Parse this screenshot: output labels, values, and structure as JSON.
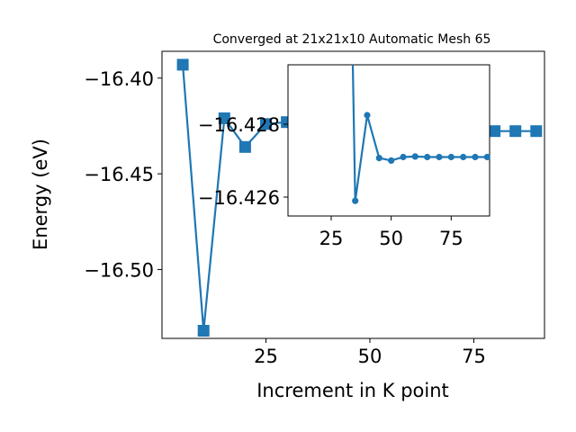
{
  "chart_data": [
    {
      "type": "line",
      "title": "Converged at 21x21x10 Automatic Mesh 65",
      "xlabel": "Increment in K point",
      "ylabel": "Energy (eV)",
      "xlim": [
        0,
        92
      ],
      "ylim": [
        -16.536,
        -16.386
      ],
      "xticks": [
        25,
        50,
        75
      ],
      "xtick_labels": [
        "25",
        "50",
        "75"
      ],
      "yticks": [
        -16.4,
        -16.45,
        -16.5
      ],
      "ytick_labels": [
        "−16.40",
        "−16.45",
        "−16.50"
      ],
      "grid": false,
      "marker": "square",
      "color": "#1f77b4",
      "series": [
        {
          "x": [
            5,
            10,
            15,
            20,
            25,
            30,
            35,
            40,
            45,
            50,
            55,
            60,
            65,
            70,
            75,
            80,
            85,
            90
          ],
          "y": [
            -16.393,
            -16.532,
            -16.421,
            -16.436,
            -16.424,
            -16.423,
            -16.4278,
            -16.4265,
            -16.4278,
            -16.4278,
            -16.4277,
            -16.4277,
            -16.4277,
            -16.4277,
            -16.4277,
            -16.4277,
            -16.4277,
            -16.4277
          ]
        }
      ]
    },
    {
      "type": "line",
      "inset": true,
      "xlim": [
        7,
        91
      ],
      "ylim": [
        -16.4256,
        -16.4286
      ],
      "xticks": [
        25,
        50,
        75
      ],
      "xtick_labels": [
        "25",
        "50",
        "75"
      ],
      "yticks": [
        -16.428,
        -16.426
      ],
      "ytick_labels": [
        "−16.428",
        "−16.426"
      ],
      "marker": "circle",
      "color": "#1f77b4",
      "series": [
        {
          "x": [
            35,
            40,
            45,
            50,
            55,
            60,
            65,
            70,
            75,
            80,
            85,
            90
          ],
          "y": [
            -16.4278,
            -16.4265,
            -16.4278,
            -16.4278,
            -16.4277,
            -16.4277,
            -16.4277,
            -16.4277,
            -16.4277,
            -16.4277,
            -16.4277,
            -16.4277
          ],
          "y_display": [
            -16.4283,
            -16.4266,
            -16.42745,
            -16.4275,
            -16.42743,
            -16.42742,
            -16.42743,
            -16.42743,
            -16.42743,
            -16.42743,
            -16.42743,
            -16.42743
          ]
        }
      ]
    }
  ]
}
